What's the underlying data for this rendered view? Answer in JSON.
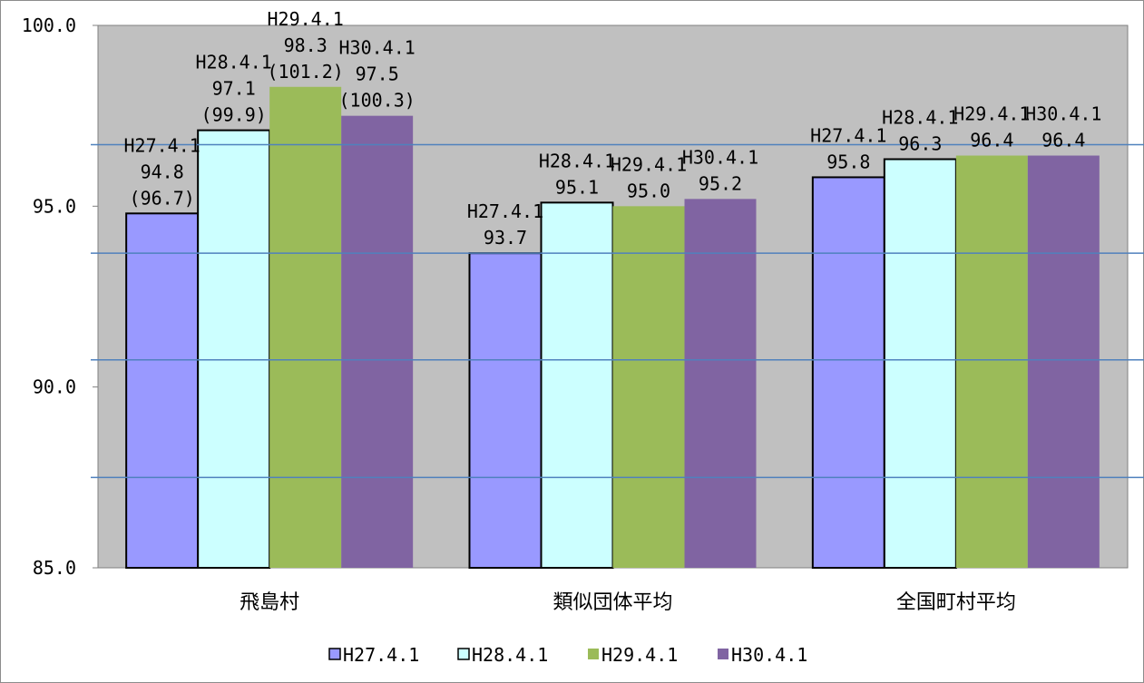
{
  "chart_data": {
    "type": "bar",
    "categories": [
      "飛島村",
      "類似団体平均",
      "全国町村平均"
    ],
    "series": [
      {
        "name": "H27.4.1",
        "color": "#9999ff",
        "values": [
          94.8,
          93.7,
          95.8
        ],
        "labels": [
          [
            "H27.4.1",
            "94.8",
            "(96.7)"
          ],
          [
            "H27.4.1",
            "93.7"
          ],
          [
            "H27.4.1",
            "95.8"
          ]
        ]
      },
      {
        "name": "H28.4.1",
        "color": "#ccffff",
        "values": [
          97.1,
          95.1,
          96.3
        ],
        "labels": [
          [
            "H28.4.1",
            "97.1",
            "(99.9)"
          ],
          [
            "H28.4.1",
            "95.1"
          ],
          [
            "H28.4.1",
            "96.3"
          ]
        ]
      },
      {
        "name": "H29.4.1",
        "color": "#9bbb59",
        "values": [
          98.3,
          95.0,
          96.4
        ],
        "labels": [
          [
            "H29.4.1",
            "98.3",
            "(101.2)"
          ],
          [
            "H29.4.1",
            "95.0"
          ],
          [
            "H29.4.1",
            "96.4"
          ]
        ]
      },
      {
        "name": "H30.4.1",
        "color": "#8064a2",
        "values": [
          97.5,
          95.2,
          96.4
        ],
        "labels": [
          [
            "H30.4.1",
            "97.5",
            "(100.3)"
          ],
          [
            "H30.4.1",
            "95.2"
          ],
          [
            "H30.4.1",
            "96.4"
          ]
        ]
      }
    ],
    "y_ticks": [
      "100.0",
      "95.0",
      "90.0",
      "85.0"
    ],
    "ylim": [
      85,
      100
    ],
    "reference_lines": [
      96.7,
      93.7,
      90.75,
      87.5
    ],
    "plot_background": "#c0c0c0",
    "reference_line_color": "#4f81bd",
    "legend_position": "bottom"
  }
}
